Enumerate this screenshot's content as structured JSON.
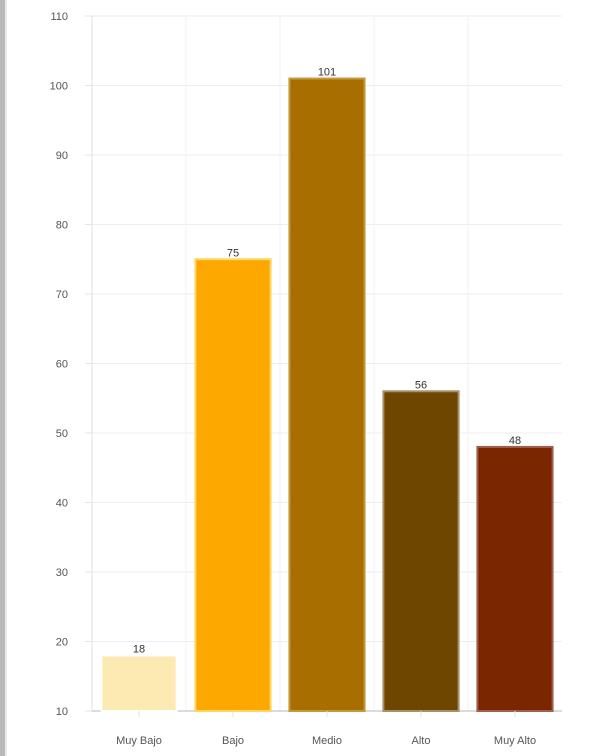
{
  "chart_data": {
    "type": "bar",
    "categories": [
      "Muy Bajo",
      "Bajo",
      "Medio",
      "Alto",
      "Muy Alto"
    ],
    "values": [
      18,
      75,
      101,
      56,
      48
    ],
    "title": "",
    "xlabel": "",
    "ylabel": "",
    "ylim": [
      10,
      110
    ],
    "yticks": [
      10,
      20,
      30,
      40,
      50,
      60,
      70,
      80,
      90,
      100,
      110
    ],
    "grid": true,
    "legend": "none",
    "colors": [
      "#fde9b2",
      "#fca800",
      "#a86f00",
      "#6e4600",
      "#7a2600"
    ],
    "border_colors": [
      "#ffffff",
      "#fdd560",
      "#c49a40",
      "#a8906a",
      "#a06050"
    ]
  }
}
